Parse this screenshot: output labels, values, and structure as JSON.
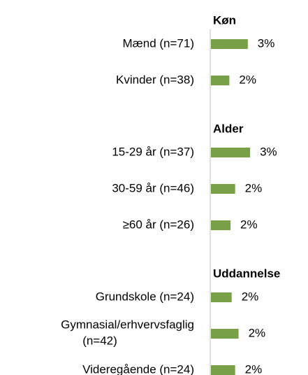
{
  "chart_data": {
    "type": "bar",
    "orientation": "horizontal",
    "color": "#77a047",
    "groups": [
      {
        "title": "Køn",
        "categories": [
          "Mænd (n=71)",
          "Kvinder (n=38)"
        ],
        "values": [
          3.2,
          1.6
        ],
        "value_labels": [
          "3%",
          "2%"
        ]
      },
      {
        "title": "Alder",
        "categories": [
          "15-29 år (n=37)",
          "30-59 år (n=46)",
          "≥60 år (n=26)"
        ],
        "values": [
          3.4,
          2.1,
          1.7
        ],
        "value_labels": [
          "3%",
          "2%",
          "2%"
        ]
      },
      {
        "title": "Uddannelse",
        "categories": [
          "Grundskole (n=24)",
          "Gymnasial/erhvervsfaglig\n(n=42)",
          "Videregående (n=24)"
        ],
        "values": [
          1.8,
          2.4,
          2.1
        ],
        "value_labels": [
          "2%",
          "2%",
          "2%"
        ]
      }
    ]
  }
}
